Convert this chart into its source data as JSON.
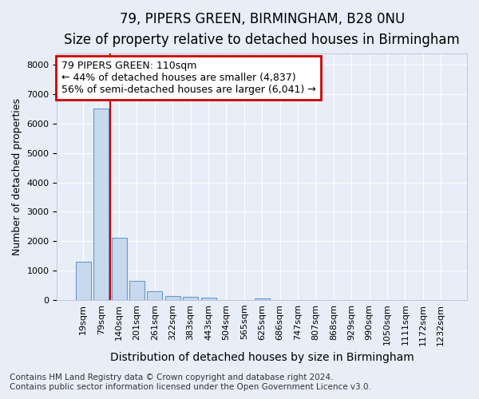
{
  "title1": "79, PIPERS GREEN, BIRMINGHAM, B28 0NU",
  "title2": "Size of property relative to detached houses in Birmingham",
  "xlabel": "Distribution of detached houses by size in Birmingham",
  "ylabel": "Number of detached properties",
  "bar_labels": [
    "19sqm",
    "79sqm",
    "140sqm",
    "201sqm",
    "261sqm",
    "322sqm",
    "383sqm",
    "443sqm",
    "504sqm",
    "565sqm",
    "625sqm",
    "686sqm",
    "747sqm",
    "807sqm",
    "868sqm",
    "929sqm",
    "990sqm",
    "1050sqm",
    "1111sqm",
    "1172sqm",
    "1232sqm"
  ],
  "bar_values": [
    1300,
    6500,
    2100,
    650,
    300,
    140,
    90,
    65,
    5,
    3,
    60,
    0,
    0,
    0,
    0,
    0,
    0,
    0,
    0,
    0,
    0
  ],
  "bar_color": "#c8d8ee",
  "bar_edge_color": "#6699cc",
  "bar_width": 0.85,
  "ylim": [
    0,
    8400
  ],
  "yticks": [
    0,
    1000,
    2000,
    3000,
    4000,
    5000,
    6000,
    7000,
    8000
  ],
  "red_line_x": 1.5,
  "annotation_text": "79 PIPERS GREEN: 110sqm\n← 44% of detached houses are smaller (4,837)\n56% of semi-detached houses are larger (6,041) →",
  "annotation_box_color": "#cc0000",
  "footnote1": "Contains HM Land Registry data © Crown copyright and database right 2024.",
  "footnote2": "Contains public sector information licensed under the Open Government Licence v3.0.",
  "bg_color": "#e8eef8",
  "plot_bg_color": "#e8eef8",
  "grid_color": "#ffffff",
  "title1_fontsize": 12,
  "title2_fontsize": 10,
  "xlabel_fontsize": 10,
  "ylabel_fontsize": 9,
  "tick_fontsize": 8,
  "footnote_fontsize": 7.5,
  "ann_fontsize": 9
}
